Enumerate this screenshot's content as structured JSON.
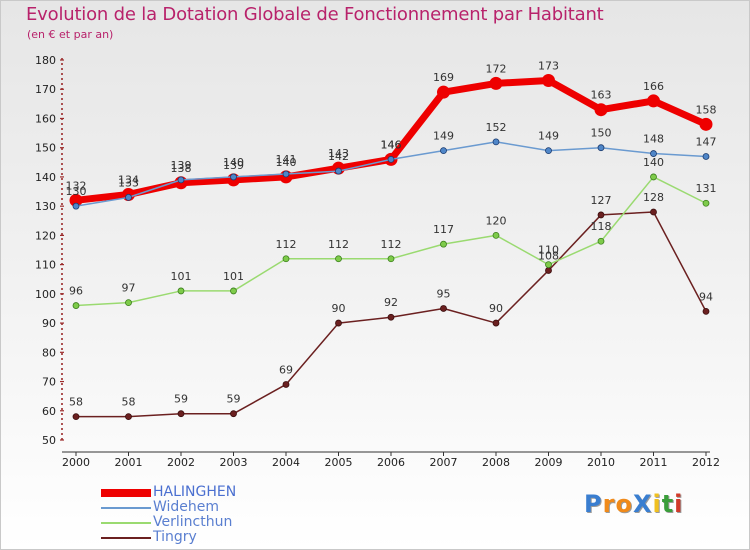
{
  "chart_data": {
    "type": "line",
    "title": "Evolution de la Dotation Globale de Fonctionnement par Habitant",
    "subtitle": "(en € et par an)",
    "xlabel": "",
    "ylabel": "",
    "categories": [
      "2000",
      "2001",
      "2002",
      "2003",
      "2004",
      "2005",
      "2006",
      "2007",
      "2008",
      "2009",
      "2010",
      "2011",
      "2012"
    ],
    "ylim": [
      50,
      180
    ],
    "yticks": [
      50,
      60,
      70,
      80,
      90,
      100,
      110,
      120,
      130,
      140,
      150,
      160,
      170,
      180
    ],
    "grid": false,
    "legend_position": "bottom-left",
    "series": [
      {
        "name": "HALINGHEN",
        "color": "#ee0000",
        "values": [
          132,
          134,
          138,
          139,
          140,
          143,
          146,
          169,
          172,
          173,
          163,
          166,
          158
        ]
      },
      {
        "name": "Widehem",
        "color": "#6a9ad0",
        "values": [
          130,
          133,
          139,
          140,
          141,
          142,
          146,
          149,
          152,
          149,
          150,
          148,
          147
        ]
      },
      {
        "name": "Verlincthun",
        "color": "#9ada70",
        "values": [
          96,
          97,
          101,
          101,
          112,
          112,
          112,
          117,
          120,
          110,
          118,
          140,
          131
        ]
      },
      {
        "name": "Tingry",
        "color": "#6b2020",
        "values": [
          58,
          58,
          59,
          59,
          69,
          90,
          92,
          95,
          90,
          108,
          127,
          128,
          94
        ]
      }
    ]
  },
  "logo": {
    "text": "ProXiti"
  }
}
